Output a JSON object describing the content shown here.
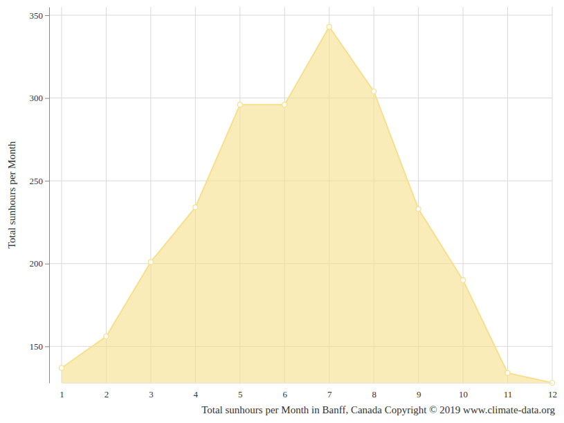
{
  "chart_data": {
    "type": "area",
    "title": "Total sunhours per Month in Banff, Canada Copyright © 2019 www.climate-data.org",
    "ylabel": "Total sunhours per Month",
    "x": [
      1,
      2,
      3,
      4,
      5,
      6,
      7,
      8,
      9,
      10,
      11,
      12
    ],
    "values": [
      137,
      156,
      201,
      234,
      296,
      296,
      343,
      304,
      233,
      190,
      134,
      128
    ],
    "color": "#f7e08c",
    "marker": "circle",
    "xlim": [
      1,
      12
    ],
    "xticks": [
      1,
      2,
      3,
      4,
      5,
      6,
      7,
      8,
      9,
      10,
      11,
      12
    ],
    "ylim": [
      128,
      355
    ],
    "yticks": [
      150,
      200,
      250,
      300,
      350
    ],
    "grid": true
  }
}
